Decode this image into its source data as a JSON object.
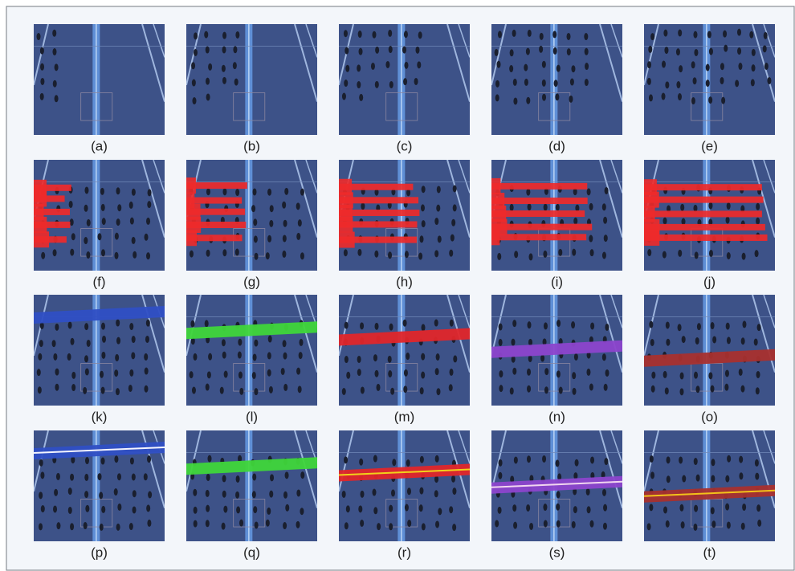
{
  "panels": [
    "(a)",
    "(b)",
    "(c)",
    "(d)",
    "(e)",
    "(f)",
    "(g)",
    "(h)",
    "(i)",
    "(j)",
    "(k)",
    "(l)",
    "(m)",
    "(n)",
    "(o)",
    "(p)",
    "(q)",
    "(r)",
    "(s)",
    "(t)"
  ]
}
